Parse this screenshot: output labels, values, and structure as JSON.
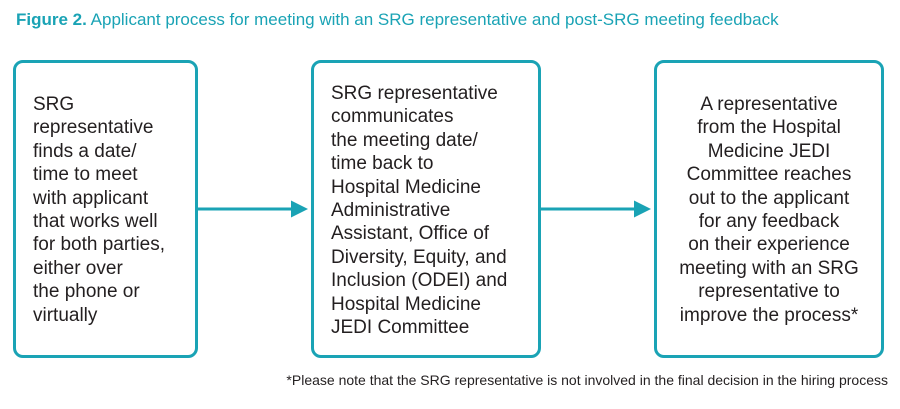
{
  "caption": {
    "label": "Figure 2.",
    "text": "Applicant process for meeting with an SRG representative and post-SRG meeting feedback"
  },
  "steps": [
    {
      "lines": [
        "SRG",
        "representative",
        "finds a date/",
        "time to meet",
        "with applicant",
        "that works well",
        "for both parties,",
        "either over",
        "the phone or",
        "virtually"
      ]
    },
    {
      "lines": [
        "SRG representative",
        "communicates",
        "the meeting date/",
        "time back to",
        "Hospital Medicine",
        "Administrative",
        "Assistant, Office of",
        "Diversity,  Equity, and",
        "Inclusion (ODEI) and",
        "Hospital Medicine",
        "JEDI Committee"
      ]
    },
    {
      "lines": [
        "A representative",
        "from the Hospital",
        "Medicine JEDI",
        "Committee reaches",
        "out to the applicant",
        "for any feedback",
        "on their experience",
        "meeting with an SRG",
        "representative to",
        "improve the process*"
      ]
    }
  ],
  "footnote": "*Please note that the SRG representative is not involved in the final decision in the hiring process",
  "colors": {
    "accent": "#1aa3b5",
    "text": "#231f20"
  }
}
